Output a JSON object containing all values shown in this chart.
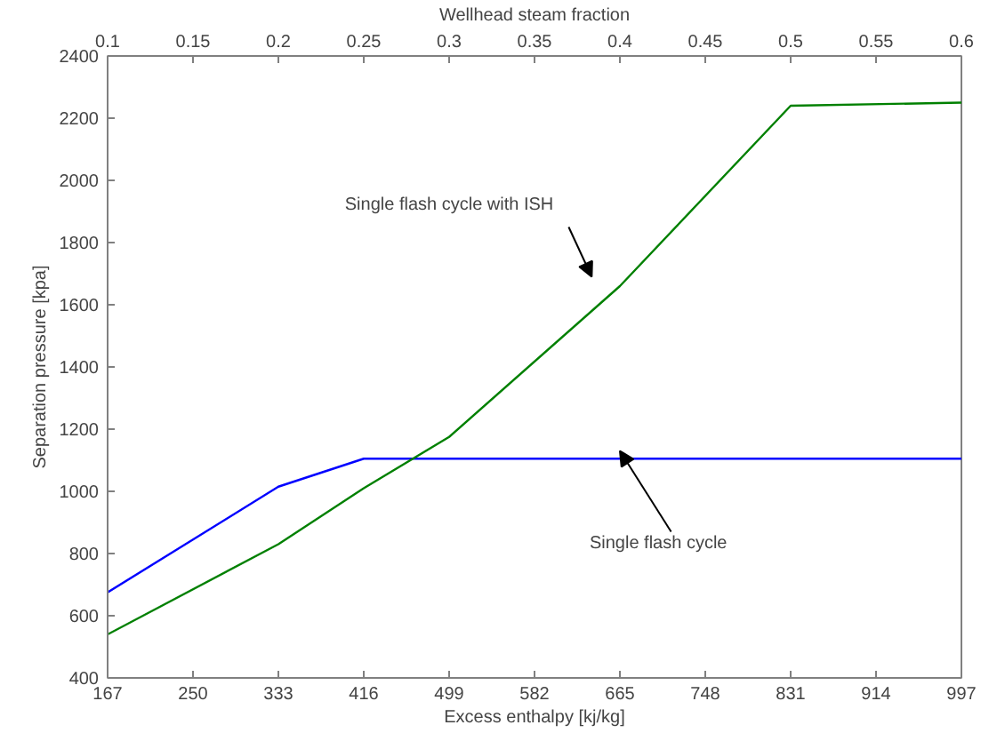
{
  "chart_data": {
    "type": "line",
    "xlabel": "Excess enthalpy [kj/kg]",
    "ylabel": "Separation pressure [kpa]",
    "x2label": "Wellhead steam fraction",
    "xlim": [
      167,
      997
    ],
    "xticks": [
      167,
      250,
      333,
      416,
      499,
      582,
      665,
      748,
      831,
      914,
      997
    ],
    "x2lim": [
      0.1,
      0.6
    ],
    "x2ticks": [
      0.1,
      0.15,
      0.2,
      0.25,
      0.3,
      0.35,
      0.4,
      0.45,
      0.5,
      0.55,
      0.6
    ],
    "ylim": [
      400,
      2400
    ],
    "yticks": [
      400,
      600,
      800,
      1000,
      1200,
      1400,
      1600,
      1800,
      2000,
      2200,
      2400
    ],
    "grid": false,
    "line_style": "solid",
    "series": [
      {
        "color": "#0000ff",
        "x": [
          167,
          333,
          416,
          997
        ],
        "values": [
          675,
          1015,
          1105,
          1105
        ]
      },
      {
        "color": "#008000",
        "x": [
          167,
          333,
          416,
          499,
          665,
          831,
          997
        ],
        "values": [
          540,
          830,
          1010,
          1175,
          1660,
          2240,
          2250
        ]
      }
    ],
    "annotations": [
      "Single flash cycle with ISH",
      "Single flash cycle"
    ]
  }
}
